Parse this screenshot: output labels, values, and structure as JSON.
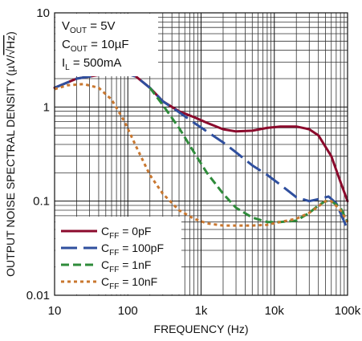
{
  "chart_data": {
    "type": "line",
    "xlabel": "FREQUENCY (Hz)",
    "ylabel": {
      "main": "OUTPUT NOISE SPECTRAL DENSITY (µV/",
      "radical": "√Hz",
      "close": ")"
    },
    "xscale": "log",
    "yscale": "log",
    "xlim": [
      10,
      100000
    ],
    "ylim": [
      0.01,
      10
    ],
    "grid": true,
    "legend_position": "bottom-left",
    "x_ticks": [
      {
        "value": 10,
        "label": "10"
      },
      {
        "value": 100,
        "label": "100"
      },
      {
        "value": 1000,
        "label": "1k"
      },
      {
        "value": 10000,
        "label": "10k"
      },
      {
        "value": 100000,
        "label": "100k"
      }
    ],
    "y_ticks": [
      {
        "value": 0.01,
        "label": "0.01"
      },
      {
        "value": 0.1,
        "label": "0.1"
      },
      {
        "value": 1,
        "label": "1"
      },
      {
        "value": 10,
        "label": "10"
      }
    ],
    "conditions": [
      {
        "base": "V",
        "sub": "OUT",
        "rest": " = 5V"
      },
      {
        "base": "C",
        "sub": "OUT",
        "rest": " = 10µF"
      },
      {
        "base": "I",
        "sub": "L",
        "rest": " = 500mA"
      }
    ],
    "series": [
      {
        "name": "C_FF = 0pF",
        "label": {
          "base": "C",
          "sub": "FF",
          "rest": " = 0pF"
        },
        "color": "#8b0a2c",
        "dash": "solid",
        "x": [
          10,
          20,
          50,
          90,
          130,
          200,
          300,
          500,
          800,
          1200,
          2000,
          3000,
          5000,
          8000,
          12000,
          20000,
          30000,
          40000,
          60000,
          80000,
          100000
        ],
        "y": [
          1.6,
          2.0,
          2.25,
          2.3,
          2.1,
          1.6,
          1.15,
          0.9,
          0.78,
          0.68,
          0.58,
          0.55,
          0.56,
          0.6,
          0.62,
          0.62,
          0.58,
          0.5,
          0.3,
          0.16,
          0.1
        ]
      },
      {
        "name": "C_FF = 100pF",
        "label": {
          "base": "C",
          "sub": "FF",
          "rest": " = 100pF"
        },
        "color": "#2f4f9e",
        "dash": "long",
        "x": [
          10,
          20,
          50,
          90,
          130,
          200,
          300,
          500,
          800,
          1200,
          2000,
          3000,
          5000,
          8000,
          12000,
          20000,
          30000,
          40000,
          55000,
          70000,
          100000
        ],
        "y": [
          1.6,
          2.0,
          2.25,
          2.3,
          2.1,
          1.6,
          1.15,
          0.88,
          0.68,
          0.55,
          0.42,
          0.33,
          0.24,
          0.19,
          0.15,
          0.11,
          0.1,
          0.105,
          0.112,
          0.095,
          0.05
        ]
      },
      {
        "name": "C_FF = 1nF",
        "label": {
          "base": "C",
          "sub": "FF",
          "rest": " = 1nF"
        },
        "color": "#2e8b3a",
        "dash": "medium",
        "x": [
          200,
          300,
          500,
          800,
          1200,
          2000,
          3000,
          5000,
          8000,
          12000,
          20000,
          30000,
          40000,
          50000,
          60000,
          80000,
          100000
        ],
        "y": [
          1.6,
          1.05,
          0.6,
          0.33,
          0.2,
          0.12,
          0.085,
          0.067,
          0.06,
          0.06,
          0.062,
          0.075,
          0.09,
          0.1,
          0.1,
          0.085,
          0.06
        ]
      },
      {
        "name": "C_FF = 10nF",
        "label": {
          "base": "C",
          "sub": "FF",
          "rest": " = 10nF"
        },
        "color": "#c9772f",
        "dash": "short",
        "x": [
          10,
          15,
          25,
          40,
          60,
          90,
          130,
          200,
          300,
          500,
          800,
          1200,
          2000,
          3000,
          5000,
          8000,
          12000,
          20000,
          30000,
          40000,
          50000,
          60000,
          80000,
          100000
        ],
        "y": [
          1.55,
          1.7,
          1.75,
          1.6,
          1.2,
          0.7,
          0.38,
          0.19,
          0.12,
          0.08,
          0.065,
          0.058,
          0.055,
          0.055,
          0.055,
          0.056,
          0.06,
          0.065,
          0.075,
          0.088,
          0.1,
          0.1,
          0.08,
          0.06
        ]
      }
    ]
  }
}
